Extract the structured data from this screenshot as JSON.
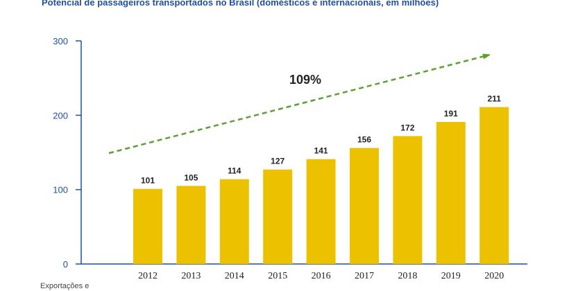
{
  "title": "Potencial de passageiros transportados no Brasil (domésticos e internacionais, em milhões)",
  "footnote": "Exportações e",
  "colors": {
    "bar": "#ecc100",
    "axis": "#1f4f9e",
    "arrow": "#5aa12f",
    "text": "#222222"
  },
  "chart_data": {
    "type": "bar",
    "title": "Potencial de passageiros transportados no Brasil (domésticos e internacionais, em milhões)",
    "categories": [
      "2012",
      "2013",
      "2014",
      "2015",
      "2016",
      "2017",
      "2018",
      "2019",
      "2020"
    ],
    "values": [
      101,
      105,
      114,
      127,
      141,
      156,
      172,
      191,
      211
    ],
    "data_labels": [
      "101",
      "105",
      "114",
      "127",
      "141",
      "156",
      "172",
      "191",
      "211"
    ],
    "y_ticks": [
      0,
      100,
      200,
      300
    ],
    "ylim": [
      0,
      300
    ],
    "xlabel": "",
    "ylabel": "",
    "grid": false,
    "legend": "none",
    "annotations": [
      {
        "type": "trend-arrow",
        "text": "109%",
        "style": "dashed",
        "color": "#5aa12f"
      }
    ]
  }
}
